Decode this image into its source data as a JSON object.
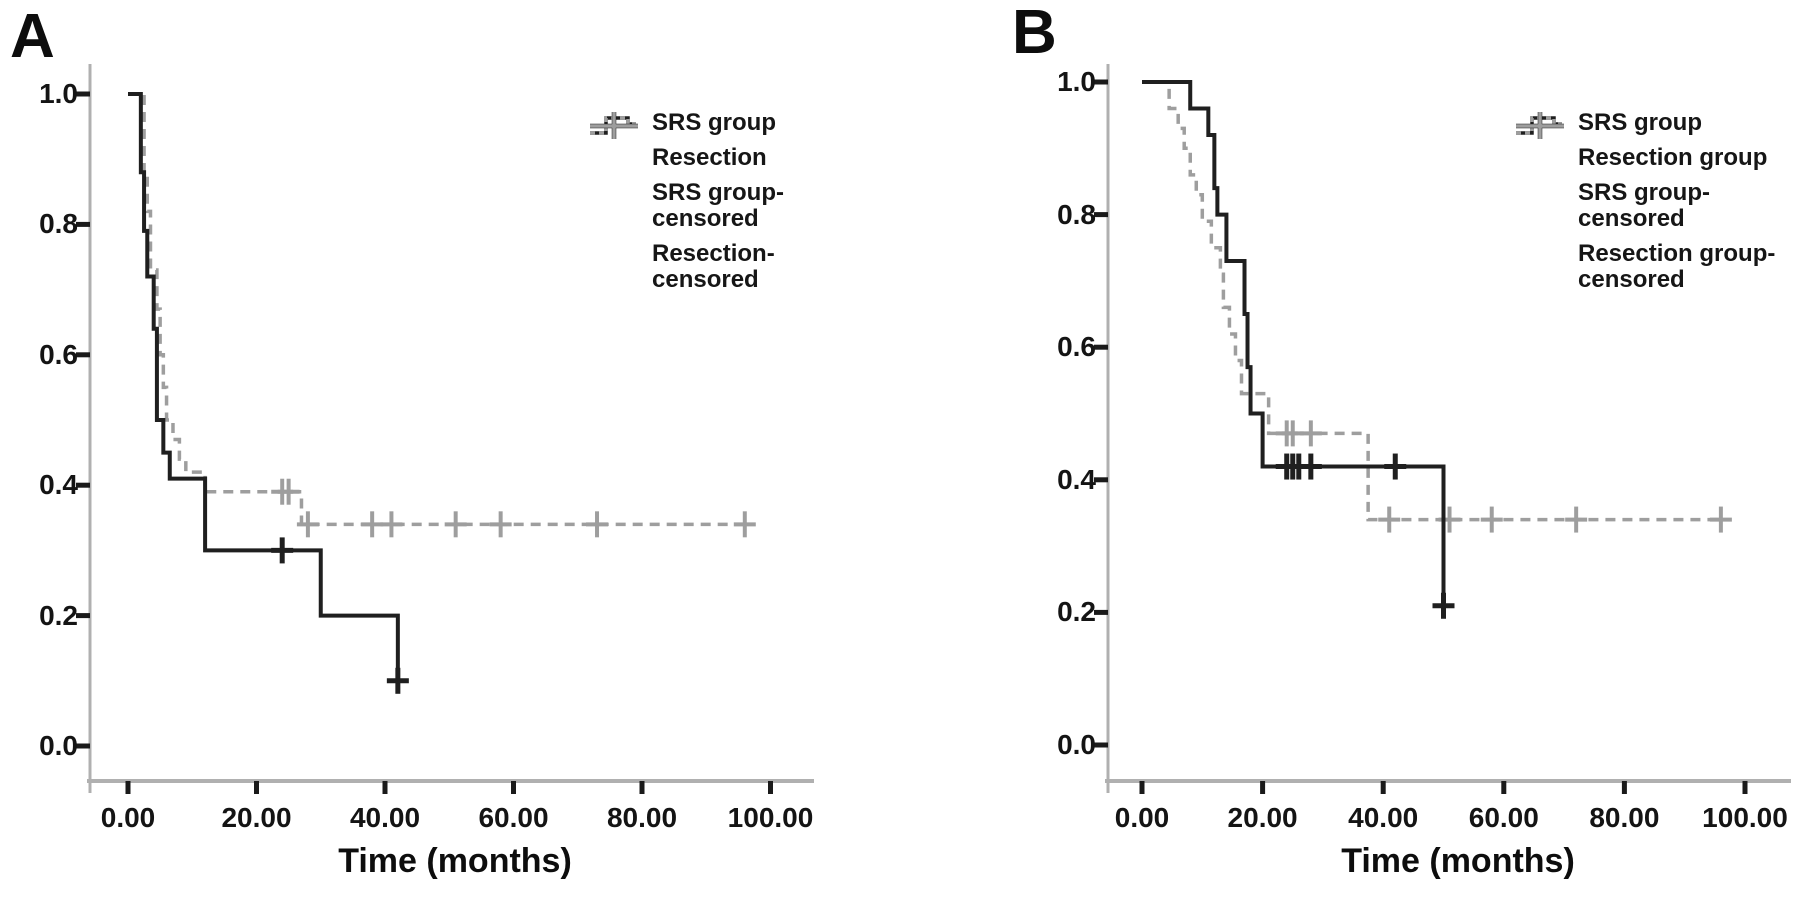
{
  "figure": {
    "xlabel": "Time (months)",
    "accent_black": "#1f1f1f",
    "accent_gray": "#9e9e9e",
    "axis_color": "#b0b0b0"
  },
  "chart_data": [
    {
      "type": "line",
      "subtype": "kaplan-meier-step",
      "panel": "A",
      "title": "A",
      "xlabel": "Time (months)",
      "ylabel": "",
      "xlim": [
        -6,
        106
      ],
      "ylim": [
        -0.07,
        1.05
      ],
      "grid": false,
      "legend_position": "upper-right-inside",
      "x_tick_values": [
        0,
        20,
        40,
        60,
        80,
        100
      ],
      "x_tick_labels": [
        "0.00",
        "20.00",
        "40.00",
        "60.00",
        "80.00",
        "100.00"
      ],
      "y_tick_values": [
        1.0,
        0.8,
        0.6,
        0.4,
        0.2,
        0.0
      ],
      "y_tick_labels": [
        "1.0",
        "0.8",
        "0.6",
        "0.4",
        "0.2",
        "0.0"
      ],
      "legend_items": [
        {
          "label": "SRS group",
          "swatch": "step-solid-black"
        },
        {
          "label": "Resection",
          "swatch": "step-dashed-gray"
        },
        {
          "label": "SRS group-\ncensored",
          "swatch": "censor-black"
        },
        {
          "label": "Resection-\ncensored",
          "swatch": "censor-gray"
        }
      ],
      "series": [
        {
          "name": "Resection",
          "style": "dashed",
          "color": "#9e9e9e",
          "step_points": [
            [
              0,
              1.0
            ],
            [
              2.5,
              0.88
            ],
            [
              3,
              0.82
            ],
            [
              3.5,
              0.73
            ],
            [
              4.5,
              0.67
            ],
            [
              5,
              0.6
            ],
            [
              5.5,
              0.55
            ],
            [
              6,
              0.5
            ],
            [
              7,
              0.47
            ],
            [
              8,
              0.44
            ],
            [
              9,
              0.42
            ],
            [
              12,
              0.39
            ],
            [
              27,
              0.34
            ],
            [
              97,
              0.34
            ]
          ],
          "censored": [
            [
              24,
              0.39
            ],
            [
              25,
              0.39
            ],
            [
              28,
              0.34
            ],
            [
              38,
              0.34
            ],
            [
              41,
              0.34
            ],
            [
              51,
              0.34
            ],
            [
              58,
              0.34
            ],
            [
              73,
              0.34
            ],
            [
              96,
              0.34
            ]
          ]
        },
        {
          "name": "SRS group",
          "style": "solid",
          "color": "#1f1f1f",
          "step_points": [
            [
              0,
              1.0
            ],
            [
              2,
              0.88
            ],
            [
              2.5,
              0.79
            ],
            [
              3,
              0.72
            ],
            [
              4,
              0.64
            ],
            [
              4.5,
              0.5
            ],
            [
              5.5,
              0.45
            ],
            [
              6.5,
              0.41
            ],
            [
              12,
              0.3
            ],
            [
              30,
              0.2
            ],
            [
              42,
              0.1
            ]
          ],
          "censored": [
            [
              24,
              0.3
            ],
            [
              42,
              0.1
            ]
          ]
        }
      ]
    },
    {
      "type": "line",
      "subtype": "kaplan-meier-step",
      "panel": "B",
      "title": "B",
      "xlabel": "Time (months)",
      "ylabel": "",
      "xlim": [
        -6,
        106
      ],
      "ylim": [
        -0.07,
        1.05
      ],
      "grid": false,
      "legend_position": "upper-right-inside",
      "x_tick_values": [
        0,
        20,
        40,
        60,
        80,
        100
      ],
      "x_tick_labels": [
        "0.00",
        "20.00",
        "40.00",
        "60.00",
        "80.00",
        "100.00"
      ],
      "y_tick_values": [
        1.0,
        0.8,
        0.6,
        0.4,
        0.2,
        0.0
      ],
      "y_tick_labels": [
        "1.0",
        "0.8",
        "0.6",
        "0.4",
        "0.2",
        "0.0"
      ],
      "legend_items": [
        {
          "label": "SRS group",
          "swatch": "step-solid-black"
        },
        {
          "label": "Resection group",
          "swatch": "step-dashed-gray"
        },
        {
          "label": "SRS group-\ncensored",
          "swatch": "censor-black"
        },
        {
          "label": "Resection group-\ncensored",
          "swatch": "censor-gray"
        }
      ],
      "series": [
        {
          "name": "Resection group",
          "style": "dashed",
          "color": "#9e9e9e",
          "step_points": [
            [
              0,
              1.0
            ],
            [
              4.5,
              0.96
            ],
            [
              6,
              0.93
            ],
            [
              7,
              0.9
            ],
            [
              8,
              0.86
            ],
            [
              9,
              0.83
            ],
            [
              10,
              0.79
            ],
            [
              11.5,
              0.75
            ],
            [
              13,
              0.71
            ],
            [
              13.5,
              0.66
            ],
            [
              14.5,
              0.62
            ],
            [
              15.5,
              0.58
            ],
            [
              16.5,
              0.53
            ],
            [
              21,
              0.47
            ],
            [
              37.5,
              0.34
            ],
            [
              96,
              0.34
            ]
          ],
          "censored": [
            [
              24,
              0.47
            ],
            [
              25,
              0.47
            ],
            [
              28,
              0.47
            ],
            [
              41,
              0.34
            ],
            [
              51,
              0.34
            ],
            [
              58,
              0.34
            ],
            [
              72,
              0.34
            ],
            [
              96,
              0.34
            ]
          ]
        },
        {
          "name": "SRS group",
          "style": "solid",
          "color": "#1f1f1f",
          "step_points": [
            [
              0,
              1.0
            ],
            [
              8,
              0.96
            ],
            [
              11,
              0.92
            ],
            [
              12,
              0.84
            ],
            [
              12.5,
              0.8
            ],
            [
              14,
              0.73
            ],
            [
              17,
              0.65
            ],
            [
              17.5,
              0.57
            ],
            [
              18,
              0.5
            ],
            [
              20,
              0.42
            ],
            [
              50,
              0.21
            ]
          ],
          "censored": [
            [
              24,
              0.42
            ],
            [
              25,
              0.42
            ],
            [
              26,
              0.42
            ],
            [
              28,
              0.42
            ],
            [
              42,
              0.42
            ],
            [
              50,
              0.21
            ]
          ]
        }
      ]
    }
  ]
}
